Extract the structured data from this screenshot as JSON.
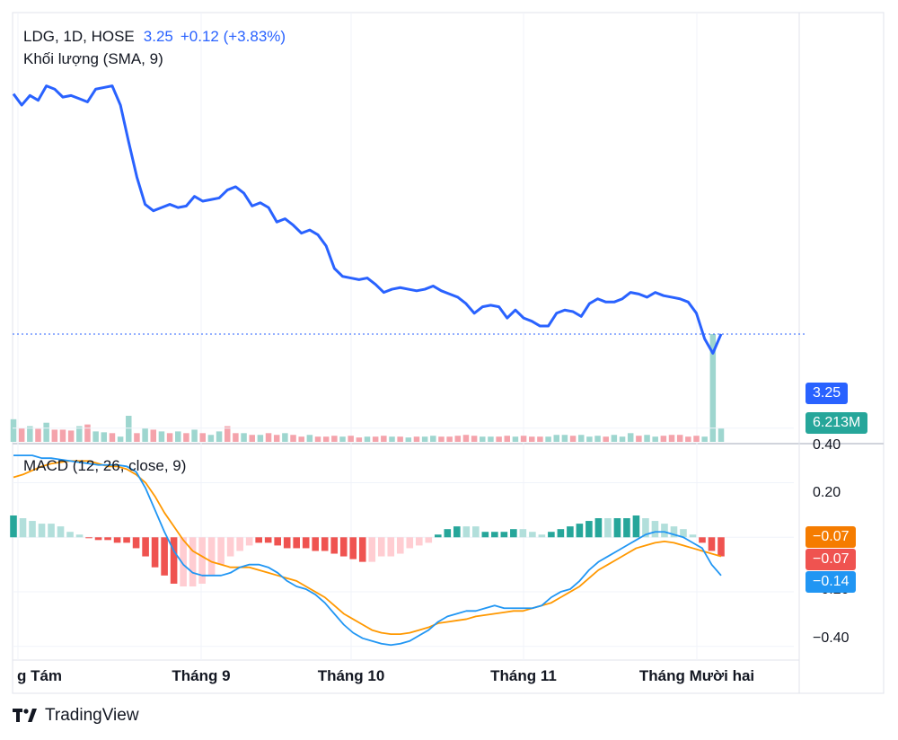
{
  "legend": {
    "symbol": "LDG, 1D, HOSE",
    "last": "3.25",
    "change": "+0.12 (+3.83%)",
    "volume_label": "Khối lượng (SMA, 9)",
    "macd_label": "MACD (12, 26, close, 9)"
  },
  "tags": {
    "price": "3.25",
    "volume": "6.213M",
    "macd_signal": "−0.07",
    "macd_hist": "−0.07",
    "macd_line": "−0.14"
  },
  "colors": {
    "price_line": "#2962ff",
    "up": "#26a69a",
    "down": "#ef5350",
    "macd_line": "#2196f3",
    "signal_line": "#ff9800",
    "price_tag_bg": "#2962ff",
    "volume_tag_bg": "#26a69a"
  },
  "brand": "TradingView",
  "chart_data": {
    "type": "line",
    "x_labels": [
      "g Tám",
      "Tháng 9",
      "Tháng 10",
      "Tháng 11",
      "Tháng Mười hai"
    ],
    "price": {
      "ylim": [
        2.7,
        5.0
      ],
      "values": [
        4.75,
        4.68,
        4.74,
        4.71,
        4.8,
        4.78,
        4.73,
        4.74,
        4.72,
        4.7,
        4.78,
        4.79,
        4.8,
        4.68,
        4.45,
        4.23,
        4.06,
        4.02,
        4.04,
        4.06,
        4.04,
        4.05,
        4.11,
        4.08,
        4.09,
        4.1,
        4.15,
        4.17,
        4.13,
        4.05,
        4.07,
        4.04,
        3.95,
        3.97,
        3.93,
        3.88,
        3.9,
        3.87,
        3.8,
        3.66,
        3.61,
        3.6,
        3.59,
        3.6,
        3.56,
        3.51,
        3.53,
        3.54,
        3.53,
        3.52,
        3.53,
        3.55,
        3.52,
        3.5,
        3.48,
        3.44,
        3.38,
        3.42,
        3.43,
        3.42,
        3.35,
        3.4,
        3.35,
        3.33,
        3.3,
        3.3,
        3.38,
        3.4,
        3.39,
        3.36,
        3.44,
        3.47,
        3.45,
        3.45,
        3.47,
        3.51,
        3.5,
        3.48,
        3.51,
        3.49,
        3.48,
        3.47,
        3.45,
        3.38,
        3.22,
        3.13,
        3.25
      ]
    },
    "volume": {
      "values": [
        1.3,
        0.8,
        0.9,
        0.75,
        1.1,
        0.7,
        0.7,
        0.65,
        0.9,
        1.0,
        0.6,
        0.55,
        0.5,
        0.3,
        1.5,
        0.5,
        0.8,
        0.7,
        0.6,
        0.5,
        0.6,
        0.5,
        0.7,
        0.5,
        0.4,
        0.6,
        0.9,
        0.5,
        0.5,
        0.4,
        0.4,
        0.5,
        0.4,
        0.5,
        0.4,
        0.3,
        0.4,
        0.3,
        0.3,
        0.35,
        0.3,
        0.35,
        0.25,
        0.3,
        0.3,
        0.35,
        0.3,
        0.3,
        0.25,
        0.3,
        0.3,
        0.35,
        0.3,
        0.3,
        0.35,
        0.4,
        0.35,
        0.3,
        0.3,
        0.3,
        0.35,
        0.3,
        0.35,
        0.3,
        0.3,
        0.3,
        0.4,
        0.4,
        0.35,
        0.4,
        0.3,
        0.35,
        0.3,
        0.4,
        0.3,
        0.5,
        0.35,
        0.4,
        0.3,
        0.35,
        0.4,
        0.4,
        0.3,
        0.35,
        0.3,
        6.2,
        0.8
      ],
      "up": [
        1,
        0,
        1,
        0,
        1,
        0,
        0,
        0,
        1,
        0,
        1,
        1,
        0,
        1,
        1,
        0,
        1,
        0,
        1,
        0,
        1,
        0,
        1,
        0,
        1,
        1,
        0,
        0,
        1,
        0,
        1,
        0,
        0,
        1,
        0,
        0,
        1,
        0,
        0,
        0,
        1,
        0,
        0,
        1,
        0,
        0,
        1,
        0,
        1,
        0,
        1,
        1,
        0,
        0,
        0,
        0,
        0,
        1,
        1,
        0,
        0,
        1,
        0,
        0,
        0,
        1,
        1,
        1,
        0,
        1,
        1,
        1,
        0,
        1,
        1,
        1,
        0,
        1,
        1,
        0,
        0,
        0,
        0,
        0,
        1,
        1,
        1
      ]
    },
    "macd": {
      "ylim": [
        -0.45,
        0.34
      ],
      "y_ticks": [
        "0.40",
        "0.20",
        "−0.20",
        "−0.40"
      ],
      "macd": [
        0.3,
        0.3,
        0.3,
        0.29,
        0.29,
        0.285,
        0.28,
        0.275,
        0.27,
        0.265,
        0.265,
        0.265,
        0.26,
        0.24,
        0.18,
        0.1,
        0.02,
        -0.05,
        -0.1,
        -0.13,
        -0.14,
        -0.14,
        -0.14,
        -0.13,
        -0.11,
        -0.1,
        -0.1,
        -0.11,
        -0.13,
        -0.16,
        -0.18,
        -0.19,
        -0.21,
        -0.24,
        -0.28,
        -0.32,
        -0.35,
        -0.37,
        -0.38,
        -0.39,
        -0.395,
        -0.39,
        -0.38,
        -0.36,
        -0.34,
        -0.31,
        -0.29,
        -0.28,
        -0.27,
        -0.27,
        -0.26,
        -0.25,
        -0.26,
        -0.26,
        -0.26,
        -0.26,
        -0.25,
        -0.22,
        -0.2,
        -0.19,
        -0.16,
        -0.12,
        -0.09,
        -0.07,
        -0.05,
        -0.03,
        -0.01,
        0.01,
        0.02,
        0.02,
        0.01,
        0.0,
        -0.02,
        -0.04,
        -0.1,
        -0.14
      ],
      "signal": [
        0.22,
        0.23,
        0.245,
        0.26,
        0.27,
        0.275,
        0.28,
        0.28,
        0.28,
        0.27,
        0.26,
        0.26,
        0.25,
        0.23,
        0.2,
        0.15,
        0.09,
        0.04,
        -0.01,
        -0.05,
        -0.07,
        -0.09,
        -0.1,
        -0.11,
        -0.11,
        -0.11,
        -0.12,
        -0.13,
        -0.14,
        -0.15,
        -0.16,
        -0.18,
        -0.2,
        -0.22,
        -0.25,
        -0.28,
        -0.3,
        -0.32,
        -0.34,
        -0.35,
        -0.355,
        -0.355,
        -0.35,
        -0.34,
        -0.33,
        -0.315,
        -0.31,
        -0.305,
        -0.3,
        -0.29,
        -0.285,
        -0.28,
        -0.275,
        -0.27,
        -0.27,
        -0.26,
        -0.25,
        -0.24,
        -0.22,
        -0.2,
        -0.18,
        -0.15,
        -0.12,
        -0.1,
        -0.08,
        -0.06,
        -0.04,
        -0.03,
        -0.02,
        -0.015,
        -0.02,
        -0.03,
        -0.04,
        -0.05,
        -0.06,
        -0.07
      ],
      "hist": [
        0.08,
        0.07,
        0.06,
        0.05,
        0.05,
        0.04,
        0.02,
        0.01,
        0.0,
        -0.01,
        -0.01,
        -0.02,
        -0.02,
        -0.04,
        -0.07,
        -0.11,
        -0.14,
        -0.17,
        -0.18,
        -0.18,
        -0.17,
        -0.14,
        -0.1,
        -0.07,
        -0.05,
        -0.03,
        -0.02,
        -0.02,
        -0.03,
        -0.04,
        -0.04,
        -0.04,
        -0.05,
        -0.05,
        -0.06,
        -0.07,
        -0.08,
        -0.09,
        -0.09,
        -0.07,
        -0.07,
        -0.06,
        -0.04,
        -0.03,
        -0.02,
        0.01,
        0.03,
        0.04,
        0.04,
        0.04,
        0.02,
        0.02,
        0.02,
        0.03,
        0.03,
        0.02,
        0.01,
        0.02,
        0.03,
        0.04,
        0.05,
        0.06,
        0.07,
        0.07,
        0.07,
        0.07,
        0.08,
        0.07,
        0.06,
        0.05,
        0.04,
        0.03,
        0.01,
        -0.02,
        -0.05,
        -0.07
      ],
      "hist_colors": [
        "#26a69a",
        "#b2dfdb",
        "#b2dfdb",
        "#b2dfdb",
        "#b2dfdb",
        "#b2dfdb",
        "#b2dfdb",
        "#b2dfdb",
        "#ef5350",
        "#ef5350",
        "#ef5350",
        "#ef5350",
        "#ef5350",
        "#ef5350",
        "#ef5350",
        "#ef5350",
        "#ef5350",
        "#ef5350",
        "#ffcdd2",
        "#ffcdd2",
        "#ffcdd2",
        "#ffcdd2",
        "#ffcdd2",
        "#ffcdd2",
        "#ffcdd2",
        "#ffcdd2",
        "#ef5350",
        "#ef5350",
        "#ef5350",
        "#ef5350",
        "#ef5350",
        "#ef5350",
        "#ef5350",
        "#ef5350",
        "#ef5350",
        "#ef5350",
        "#ef5350",
        "#ef5350",
        "#ffcdd2",
        "#ffcdd2",
        "#ffcdd2",
        "#ffcdd2",
        "#ffcdd2",
        "#ffcdd2",
        "#ffcdd2",
        "#26a69a",
        "#26a69a",
        "#26a69a",
        "#b2dfdb",
        "#b2dfdb",
        "#26a69a",
        "#26a69a",
        "#26a69a",
        "#26a69a",
        "#b2dfdb",
        "#b2dfdb",
        "#b2dfdb",
        "#26a69a",
        "#26a69a",
        "#26a69a",
        "#26a69a",
        "#26a69a",
        "#26a69a",
        "#b2dfdb",
        "#26a69a",
        "#26a69a",
        "#26a69a",
        "#b2dfdb",
        "#b2dfdb",
        "#b2dfdb",
        "#b2dfdb",
        "#b2dfdb",
        "#b2dfdb",
        "#ef5350",
        "#ef5350",
        "#ef5350"
      ]
    }
  }
}
